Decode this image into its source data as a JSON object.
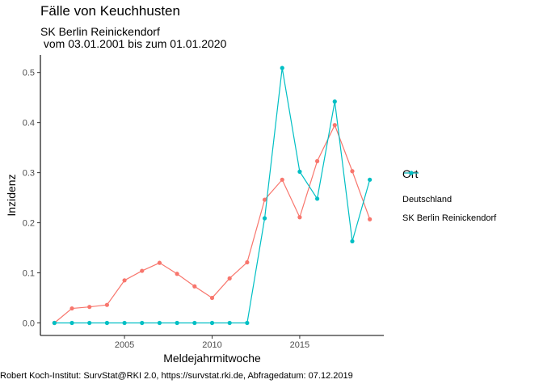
{
  "chart_data": {
    "type": "line",
    "title": "Fälle von Keuchhusten",
    "subtitle_line1": "SK Berlin Reinickendorf",
    "subtitle_line2": " vom 03.01.2001 bis zum 01.01.2020",
    "xlabel": "Meldejahrmitwoche",
    "ylabel": "Inzidenz",
    "xlim": [
      2000.2,
      2019.8
    ],
    "ylim": [
      -0.025,
      0.535
    ],
    "xticks": [
      2005,
      2010,
      2015
    ],
    "yticks": [
      0.0,
      0.1,
      0.2,
      0.3,
      0.4,
      0.5
    ],
    "ytick_labels": [
      "0.0",
      "0.1",
      "0.2",
      "0.3",
      "0.4",
      "0.5"
    ],
    "grid": false,
    "legend_title": "Ort",
    "legend_position": "right",
    "x": [
      2001,
      2002,
      2003,
      2004,
      2005,
      2006,
      2007,
      2008,
      2009,
      2010,
      2011,
      2012,
      2013,
      2014,
      2015,
      2016,
      2017,
      2018,
      2019
    ],
    "series": [
      {
        "name": "Deutschland",
        "color": "#F8766D",
        "values": [
          0.0,
          0.029,
          0.032,
          0.036,
          0.085,
          0.104,
          0.12,
          0.098,
          0.073,
          0.05,
          0.089,
          0.121,
          0.246,
          0.286,
          0.211,
          0.323,
          0.395,
          0.303,
          0.207
        ]
      },
      {
        "name": "SK Berlin Reinickendorf",
        "color": "#00BFC4",
        "values": [
          0.0,
          0.0,
          0.0,
          0.0,
          0.0,
          0.0,
          0.0,
          0.0,
          0.0,
          0.0,
          0.0,
          0.0,
          0.209,
          0.509,
          0.302,
          0.248,
          0.442,
          0.163,
          0.286
        ]
      }
    ]
  },
  "caption": "Robert Koch-Institut: SurvStat@RKI 2.0, https://survstat.rki.de, Abfragedatum: 07.12.2019"
}
